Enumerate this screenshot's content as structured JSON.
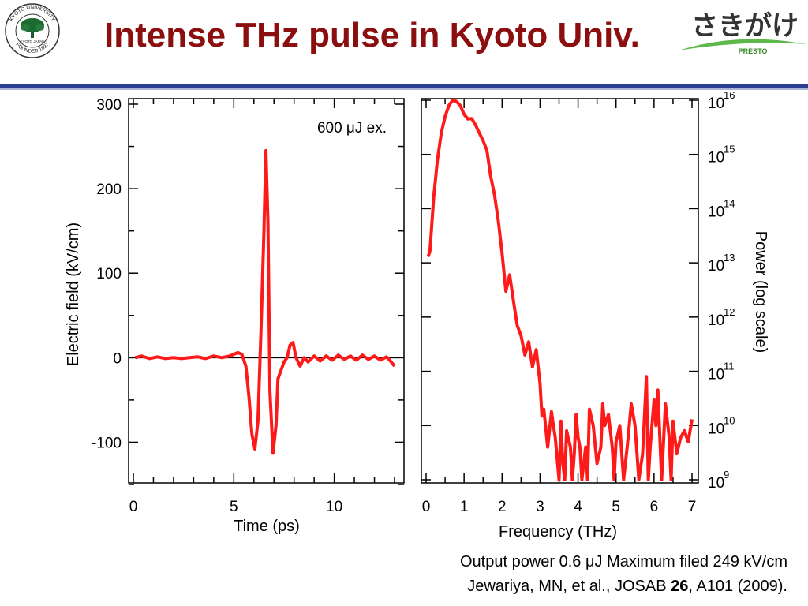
{
  "slide": {
    "title": "Intense THz pulse in Kyoto Univ.",
    "accent_color": "#8b0f0f",
    "rule_color": "#2a3d8f"
  },
  "logo_left": {
    "ring_text": "KYOTO UNIVERSITY",
    "founded_text": "FOUNDED 1897",
    "inner_text": "KYOTO JAPAN"
  },
  "logo_right": {
    "brand_text": "さきがけ",
    "sub_text": "PRESTO"
  },
  "chart_data": [
    {
      "type": "line",
      "title": "",
      "xlabel": "Time (ps)",
      "ylabel": "Electric field (kV/cm)",
      "xlim": [
        0,
        13
      ],
      "ylim": [
        -150,
        300
      ],
      "x_ticks": [
        0,
        5,
        10
      ],
      "x_tick_labels": [
        "0",
        "5",
        "10"
      ],
      "y_ticks": [
        -100,
        0,
        100,
        200,
        300
      ],
      "y_tick_labels": [
        "-100",
        "0",
        "100",
        "200",
        "300"
      ],
      "annotation": "600 μJ ex.",
      "color": "#ff1a1a",
      "series": [
        {
          "x": [
            0.1,
            0.4,
            0.8,
            1.2,
            1.6,
            2.0,
            2.4,
            2.8,
            3.2,
            3.6,
            4.0,
            4.4,
            4.8,
            5.0,
            5.2,
            5.4,
            5.6,
            5.75,
            5.9,
            6.05,
            6.2,
            6.35,
            6.5,
            6.6,
            6.7,
            6.8,
            6.95,
            7.1,
            7.2,
            7.35,
            7.5,
            7.65,
            7.8,
            7.95,
            8.1,
            8.3,
            8.5,
            8.7,
            9.0,
            9.3,
            9.6,
            9.9,
            10.2,
            10.5,
            10.8,
            11.1,
            11.4,
            11.7,
            12.0,
            12.3,
            12.6,
            12.8,
            13.0
          ],
          "y": [
            0,
            2,
            -1,
            1,
            -1,
            0,
            -1,
            0,
            1,
            -1,
            2,
            0,
            2,
            4,
            6,
            4,
            -10,
            -45,
            -90,
            -108,
            -75,
            30,
            150,
            245,
            160,
            -40,
            -113,
            -80,
            -25,
            -15,
            -5,
            0,
            15,
            18,
            0,
            -10,
            0,
            -5,
            2,
            -4,
            2,
            -3,
            3,
            -2,
            2,
            -3,
            3,
            -2,
            2,
            -3,
            1,
            -4,
            -10
          ]
        }
      ]
    },
    {
      "type": "line",
      "title": "",
      "xlabel": "Frequency (THz)",
      "ylabel": "Power (log scale)",
      "y_scale": "log",
      "xlim": [
        0,
        7
      ],
      "ylim": [
        1000000000.0,
        1e+16
      ],
      "x_ticks": [
        0,
        1,
        2,
        3,
        4,
        5,
        6,
        7
      ],
      "x_tick_labels": [
        "0",
        "1",
        "2",
        "3",
        "4",
        "5",
        "6",
        "7"
      ],
      "y_ticks": [
        1000000000.0,
        10000000000.0,
        100000000000.0,
        1000000000000.0,
        10000000000000.0,
        100000000000000.0,
        1000000000000000.0,
        1e+16
      ],
      "y_tick_labels": [
        "10",
        "10",
        "10",
        "10",
        "10",
        "10",
        "10",
        "10"
      ],
      "y_tick_exponents": [
        "9",
        "10",
        "11",
        "12",
        "13",
        "14",
        "15",
        "16"
      ],
      "color": "#ff1a1a",
      "series": [
        {
          "x": [
            0.05,
            0.1,
            0.15,
            0.2,
            0.3,
            0.4,
            0.5,
            0.6,
            0.7,
            0.8,
            0.9,
            1.0,
            1.1,
            1.2,
            1.3,
            1.4,
            1.5,
            1.6,
            1.7,
            1.8,
            1.9,
            2.0,
            2.1,
            2.2,
            2.3,
            2.4,
            2.5,
            2.6,
            2.7,
            2.8,
            2.9,
            3.0,
            3.05,
            3.1,
            3.2,
            3.3,
            3.35,
            3.4,
            3.5,
            3.55,
            3.6,
            3.65,
            3.7,
            3.8,
            3.85,
            3.9,
            3.95,
            4.0,
            4.05,
            4.1,
            4.2,
            4.25,
            4.3,
            4.4,
            4.5,
            4.6,
            4.65,
            4.7,
            4.8,
            4.9,
            4.95,
            5.0,
            5.1,
            5.2,
            5.3,
            5.4,
            5.5,
            5.6,
            5.7,
            5.8,
            5.85,
            5.9,
            6.0,
            6.05,
            6.1,
            6.2,
            6.3,
            6.4,
            6.45,
            6.5,
            6.6,
            6.7,
            6.8,
            6.9,
            7.0
          ],
          "y": [
            13000000000000.0,
            16000000000000.0,
            50000000000000.0,
            160000000000000.0,
            800000000000000.0,
            2500000000000000.0,
            5000000000000000.0,
            8000000000000000.0,
            1e+16,
            9500000000000000.0,
            8000000000000000.0,
            5500000000000000.0,
            4500000000000000.0,
            4600000000000000.0,
            3500000000000000.0,
            2500000000000000.0,
            1800000000000000.0,
            1200000000000000.0,
            400000000000000.0,
            180000000000000.0,
            60000000000000.0,
            15000000000000.0,
            3000000000000.0,
            6000000000000.0,
            2000000000000.0,
            700000000000.0,
            450000000000.0,
            200000000000.0,
            350000000000.0,
            120000000000.0,
            250000000000.0,
            60000000000.0,
            15000000000.0,
            20000000000.0,
            4000000000.0,
            18000000000.0,
            10000000000.0,
            6000000000.0,
            1000000000.0,
            12000000000.0,
            2000000000.0,
            1000000000.0,
            8000000000.0,
            4000000000.0,
            1000000000.0,
            3000000000.0,
            16000000000.0,
            6000000000.0,
            4000000000.0,
            1000000000.0,
            4000000000.0,
            1000000000.0,
            20000000000.0,
            10000000000.0,
            2000000000.0,
            4000000000.0,
            25000000000.0,
            10000000000.0,
            16000000000.0,
            4000000000.0,
            1000000000.0,
            5000000000.0,
            10000000000.0,
            1000000000.0,
            4500000000.0,
            25000000000.0,
            10000000000.0,
            1000000000.0,
            3000000000.0,
            80000000000.0,
            1000000000.0,
            4000000000.0,
            30000000000.0,
            10000000000.0,
            45000000000.0,
            1000000000.0,
            25000000000.0,
            6000000000.0,
            1000000000.0,
            12000000000.0,
            3000000000.0,
            6000000000.0,
            8000000000.0,
            5000000000.0,
            13000000000.0
          ]
        }
      ]
    }
  ],
  "caption": {
    "line1": "Output power 0.6 μJ   Maximum filed   249 kV/cm",
    "line2_pre": "Jewariya, MN, et al., JOSAB ",
    "line2_bold": "26",
    "line2_post": ", A101 (2009)."
  }
}
